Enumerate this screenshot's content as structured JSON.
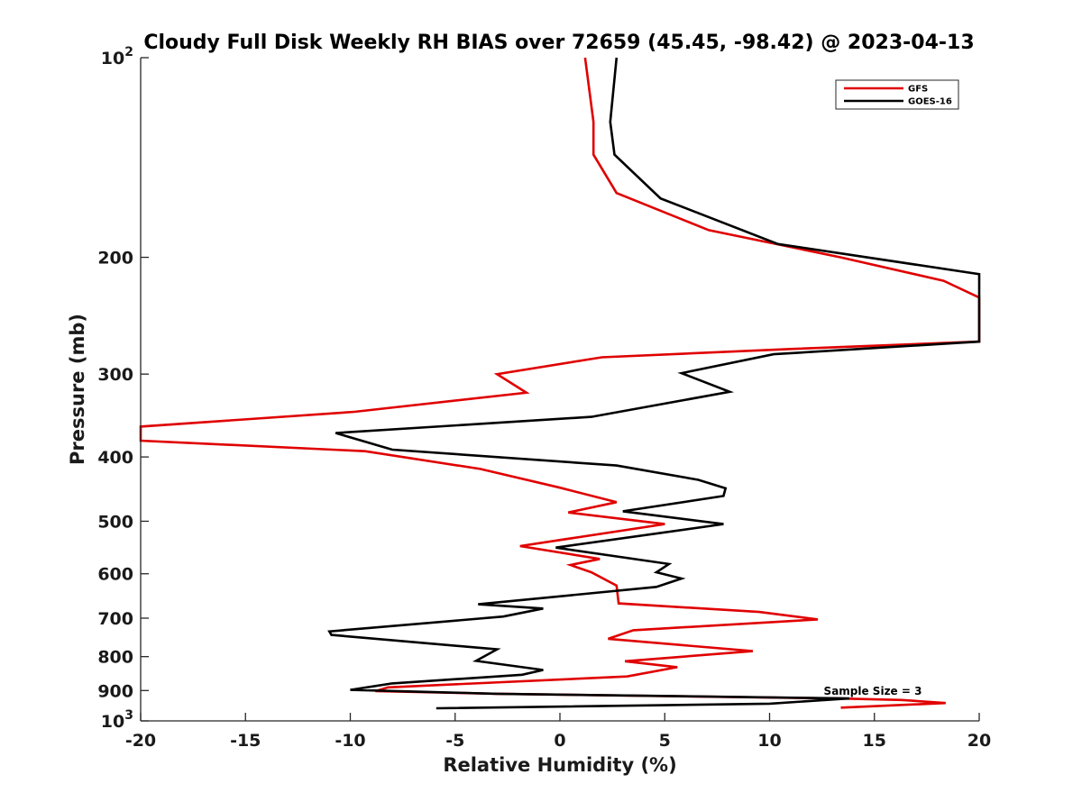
{
  "chart_data": {
    "type": "line",
    "title": "Cloudy Full Disk Weekly RH BIAS over 72659 (45.45, -98.42) @ 2023-04-13",
    "xlabel": "Relative Humidity (%)",
    "ylabel": "Pressure (mb)",
    "xlim": [
      -20,
      20
    ],
    "ylim": [
      100,
      1000
    ],
    "yscale": "log",
    "y_reversed": true,
    "grid": false,
    "legend_position": "top-right",
    "x_ticks": [
      -20,
      -15,
      -10,
      -5,
      0,
      5,
      10,
      15,
      20
    ],
    "x_tick_labels": [
      "-20",
      "-15",
      "-10",
      "-5",
      "0",
      "5",
      "10",
      "15",
      "20"
    ],
    "y_ticks": [
      {
        "value": 100,
        "label_base": "10",
        "label_exp": "2"
      },
      {
        "value": 200,
        "label_base": "200",
        "label_exp": ""
      },
      {
        "value": 300,
        "label_base": "300",
        "label_exp": ""
      },
      {
        "value": 400,
        "label_base": "400",
        "label_exp": ""
      },
      {
        "value": 500,
        "label_base": "500",
        "label_exp": ""
      },
      {
        "value": 600,
        "label_base": "600",
        "label_exp": ""
      },
      {
        "value": 700,
        "label_base": "700",
        "label_exp": ""
      },
      {
        "value": 800,
        "label_base": "800",
        "label_exp": ""
      },
      {
        "value": 900,
        "label_base": "900",
        "label_exp": ""
      },
      {
        "value": 1000,
        "label_base": "10",
        "label_exp": "3"
      }
    ],
    "annotation": "Sample Size = 3",
    "series": [
      {
        "name": "GFS",
        "color": "#e00000",
        "points": [
          [
            1.2,
            100
          ],
          [
            1.6,
            125
          ],
          [
            1.6,
            140
          ],
          [
            2.7,
            160
          ],
          [
            7.1,
            182
          ],
          [
            13.4,
            200
          ],
          [
            18.3,
            217
          ],
          [
            20.0,
            230
          ],
          [
            20.0,
            268
          ],
          [
            11.0,
            275
          ],
          [
            2.0,
            283
          ],
          [
            -3.0,
            300
          ],
          [
            -1.6,
            320
          ],
          [
            -9.8,
            342
          ],
          [
            -20.0,
            360
          ],
          [
            -20.0,
            378
          ],
          [
            -9.3,
            392
          ],
          [
            -3.8,
            417
          ],
          [
            0.0,
            445
          ],
          [
            2.7,
            468
          ],
          [
            0.4,
            485
          ],
          [
            5.0,
            505
          ],
          [
            -1.9,
            545
          ],
          [
            1.9,
            570
          ],
          [
            0.5,
            582
          ],
          [
            1.5,
            597
          ],
          [
            2.7,
            625
          ],
          [
            2.8,
            665
          ],
          [
            9.5,
            685
          ],
          [
            12.3,
            703
          ],
          [
            3.5,
            730
          ],
          [
            2.3,
            752
          ],
          [
            9.2,
            785
          ],
          [
            3.1,
            813
          ],
          [
            5.6,
            830
          ],
          [
            3.2,
            857
          ],
          [
            -8.2,
            890
          ],
          [
            -8.8,
            902
          ],
          [
            -3.0,
            910
          ],
          [
            13.2,
            925
          ],
          [
            16.3,
            930
          ],
          [
            18.4,
            940
          ],
          [
            13.4,
            955
          ]
        ]
      },
      {
        "name": "GOES-16",
        "color": "#000000",
        "points": [
          [
            2.7,
            100
          ],
          [
            2.4,
            125
          ],
          [
            2.6,
            140
          ],
          [
            4.8,
            163
          ],
          [
            10.4,
            191
          ],
          [
            20.0,
            212
          ],
          [
            20.0,
            268
          ],
          [
            10.2,
            280
          ],
          [
            5.8,
            299
          ],
          [
            8.1,
            319
          ],
          [
            1.5,
            348
          ],
          [
            -10.7,
            368
          ],
          [
            -8.0,
            390
          ],
          [
            2.7,
            412
          ],
          [
            6.6,
            433
          ],
          [
            7.9,
            446
          ],
          [
            7.8,
            458
          ],
          [
            3.0,
            483
          ],
          [
            7.8,
            505
          ],
          [
            -0.2,
            548
          ],
          [
            5.2,
            580
          ],
          [
            4.6,
            597
          ],
          [
            5.8,
            610
          ],
          [
            4.6,
            628
          ],
          [
            -3.9,
            667
          ],
          [
            -0.8,
            677
          ],
          [
            -2.7,
            696
          ],
          [
            -11.0,
            733
          ],
          [
            -10.9,
            742
          ],
          [
            -3.0,
            780
          ],
          [
            -4.0,
            812
          ],
          [
            -0.8,
            838
          ],
          [
            -1.8,
            852
          ],
          [
            -8.0,
            878
          ],
          [
            -10.0,
            898
          ],
          [
            -3.0,
            910
          ],
          [
            13.8,
            925
          ],
          [
            10.0,
            942
          ],
          [
            -5.9,
            957
          ]
        ]
      }
    ]
  }
}
